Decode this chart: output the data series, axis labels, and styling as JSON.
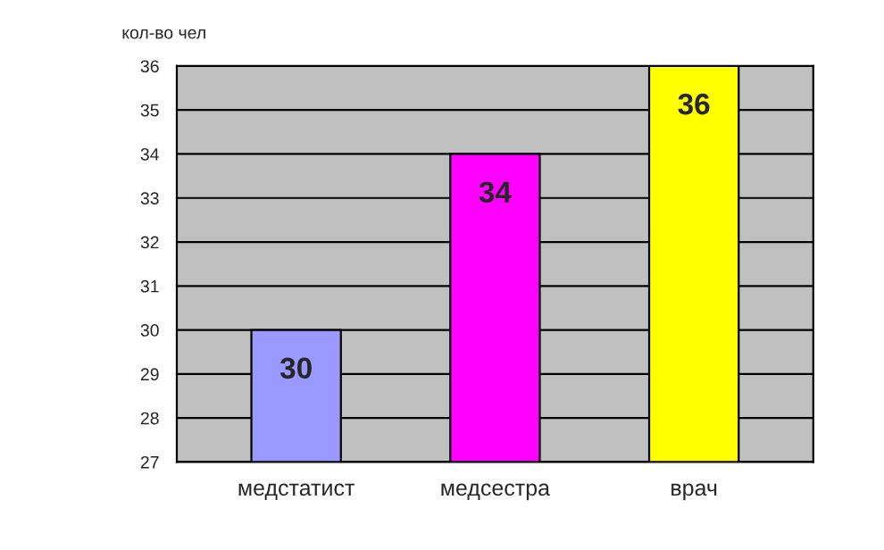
{
  "chart_data": {
    "type": "bar",
    "ylabel": "кол-во чел",
    "categories": [
      "медстатист",
      "медсестра",
      "врач"
    ],
    "values": [
      30,
      34,
      36
    ],
    "colors": [
      "#9999ff",
      "#ff00ff",
      "#ffff00"
    ],
    "ylim": [
      27,
      36
    ],
    "yticks": [
      27,
      28,
      29,
      30,
      31,
      32,
      33,
      34,
      35,
      36
    ],
    "grid": "y",
    "data_labels": true,
    "legend": false
  }
}
